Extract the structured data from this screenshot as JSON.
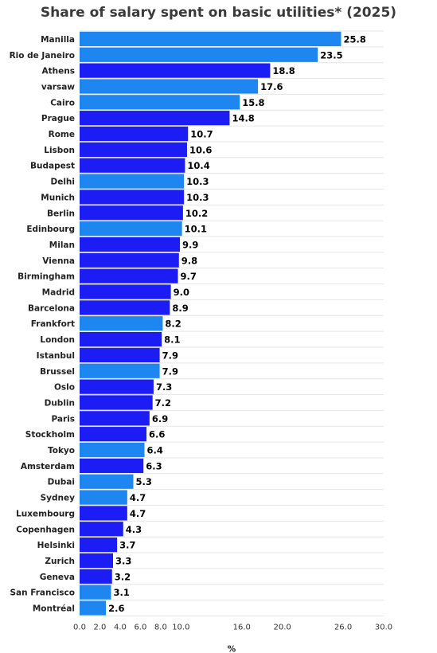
{
  "chart_data": {
    "type": "bar",
    "orientation": "horizontal",
    "title": "Share of salary spent on basic utilities* (2025)",
    "xlabel": "%",
    "ylabel": "",
    "xlim": [
      0,
      30
    ],
    "x_ticks": [
      0,
      2,
      4,
      6,
      8,
      10,
      16,
      20,
      26,
      30
    ],
    "x_tick_labels": [
      "0.0",
      "2.0",
      "4.0",
      "6.0",
      "8.0",
      "10.0",
      "16.0",
      "20.0",
      "26.0",
      "30.0"
    ],
    "grid": true,
    "colors": {
      "light": "#1e86f0",
      "dark": "#1c1cf5"
    },
    "categories": [
      "Manilla",
      "Rio de Janeiro",
      "Athens",
      "varsaw",
      "Cairo",
      "Prague",
      "Rome",
      "Lisbon",
      "Budapest",
      "Delhi",
      "Munich",
      "Berlin",
      "Edinbourg",
      "Milan",
      "Vienna",
      "Birmingham",
      "Madrid",
      "Barcelona",
      "Frankfort",
      "London",
      "Istanbul",
      "Brussel",
      "Oslo",
      "Dublin",
      "Paris",
      "Stockholm",
      "Tokyo",
      "Amsterdam",
      "Dubai",
      "Sydney",
      "Luxembourg",
      "Copenhagen",
      "Helsinki",
      "Zurich",
      "Geneva",
      "San Francisco",
      "Montréal"
    ],
    "values": [
      25.8,
      23.5,
      18.8,
      17.6,
      15.8,
      14.8,
      10.7,
      10.6,
      10.4,
      10.3,
      10.3,
      10.2,
      10.1,
      9.9,
      9.8,
      9.7,
      9.0,
      8.9,
      8.2,
      8.1,
      7.9,
      7.9,
      7.3,
      7.2,
      6.9,
      6.6,
      6.4,
      6.3,
      5.3,
      4.7,
      4.7,
      4.3,
      3.7,
      3.3,
      3.2,
      3.1,
      2.6
    ],
    "value_labels": [
      "25.8",
      "23.5",
      "18.8",
      "17.6",
      "15.8",
      "14.8",
      "10.7",
      "10.6",
      "10.4",
      "10.3",
      "10.3",
      "10.2",
      "10.1",
      "9.9",
      "9.8",
      "9.7",
      "9.0",
      "8.9",
      "8.2",
      "8.1",
      "7.9",
      "7.9",
      "7.3",
      "7.2",
      "6.9",
      "6.6",
      "6.4",
      "6.3",
      "5.3",
      "4.7",
      "4.7",
      "4.3",
      "3.7",
      "3.3",
      "3.2",
      "3.1",
      "2.6"
    ],
    "bar_colors": [
      "light",
      "light",
      "dark",
      "light",
      "light",
      "dark",
      "dark",
      "dark",
      "dark",
      "light",
      "dark",
      "dark",
      "light",
      "dark",
      "dark",
      "dark",
      "dark",
      "dark",
      "light",
      "dark",
      "dark",
      "light",
      "dark",
      "dark",
      "dark",
      "dark",
      "light",
      "dark",
      "light",
      "light",
      "dark",
      "dark",
      "dark",
      "dark",
      "dark",
      "light",
      "light"
    ]
  }
}
